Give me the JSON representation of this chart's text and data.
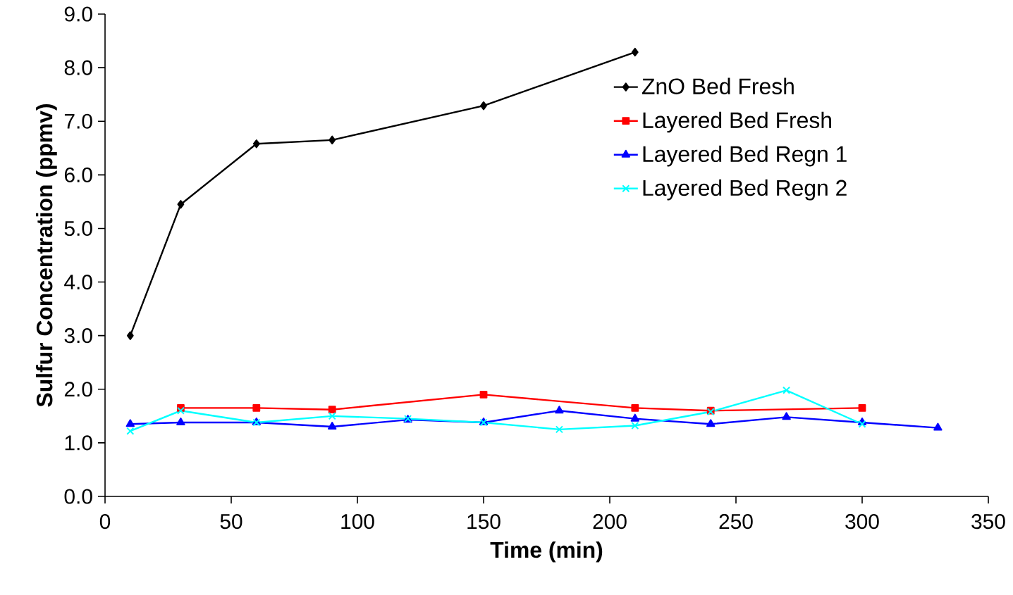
{
  "chart_data": {
    "type": "line",
    "xlabel": "Time (min)",
    "ylabel": "Sulfur Concentration (ppmv)",
    "xlim": [
      0,
      350
    ],
    "xticks": [
      0,
      50,
      100,
      150,
      200,
      250,
      300,
      350
    ],
    "ylim": [
      0,
      9
    ],
    "yticks": [
      {
        "value": 0,
        "label": "0.0"
      },
      {
        "value": 1,
        "label": "1.0"
      },
      {
        "value": 2,
        "label": "2.0"
      },
      {
        "value": 3,
        "label": "3.0"
      },
      {
        "value": 4,
        "label": "4.0"
      },
      {
        "value": 5,
        "label": "5.0"
      },
      {
        "value": 6,
        "label": "6.0"
      },
      {
        "value": 7,
        "label": "7.0"
      },
      {
        "value": 8,
        "label": "8.0"
      },
      {
        "value": 9,
        "label": "9.0"
      }
    ],
    "grid": false,
    "legend": "top right",
    "line_style": "solid",
    "series": [
      {
        "name": "ZnO Bed Fresh",
        "color": "#000000",
        "marker": "diamond",
        "x": [
          10,
          30,
          60,
          90,
          150,
          210
        ],
        "values": [
          3.0,
          5.45,
          6.58,
          6.65,
          7.29,
          8.29
        ]
      },
      {
        "name": "Layered Bed Fresh",
        "color": "#ff0000",
        "marker": "square",
        "x": [
          30,
          60,
          90,
          150,
          210,
          240,
          300
        ],
        "values": [
          1.65,
          1.65,
          1.62,
          1.9,
          1.65,
          1.6,
          1.65
        ]
      },
      {
        "name": "Layered Bed Regn 1",
        "color": "#0000ff",
        "marker": "triangle",
        "x": [
          10,
          30,
          60,
          90,
          120,
          150,
          180,
          210,
          240,
          270,
          300,
          330
        ],
        "values": [
          1.35,
          1.38,
          1.38,
          1.3,
          1.43,
          1.38,
          1.6,
          1.45,
          1.35,
          1.48,
          1.38,
          1.28
        ]
      },
      {
        "name": "Layered Bed Regn 2",
        "color": "#00ffff",
        "marker": "cross",
        "x": [
          10,
          30,
          60,
          90,
          120,
          150,
          180,
          210,
          240,
          270,
          300
        ],
        "values": [
          1.22,
          1.6,
          1.38,
          1.5,
          1.45,
          1.38,
          1.25,
          1.32,
          1.58,
          1.98,
          1.35
        ]
      }
    ]
  }
}
